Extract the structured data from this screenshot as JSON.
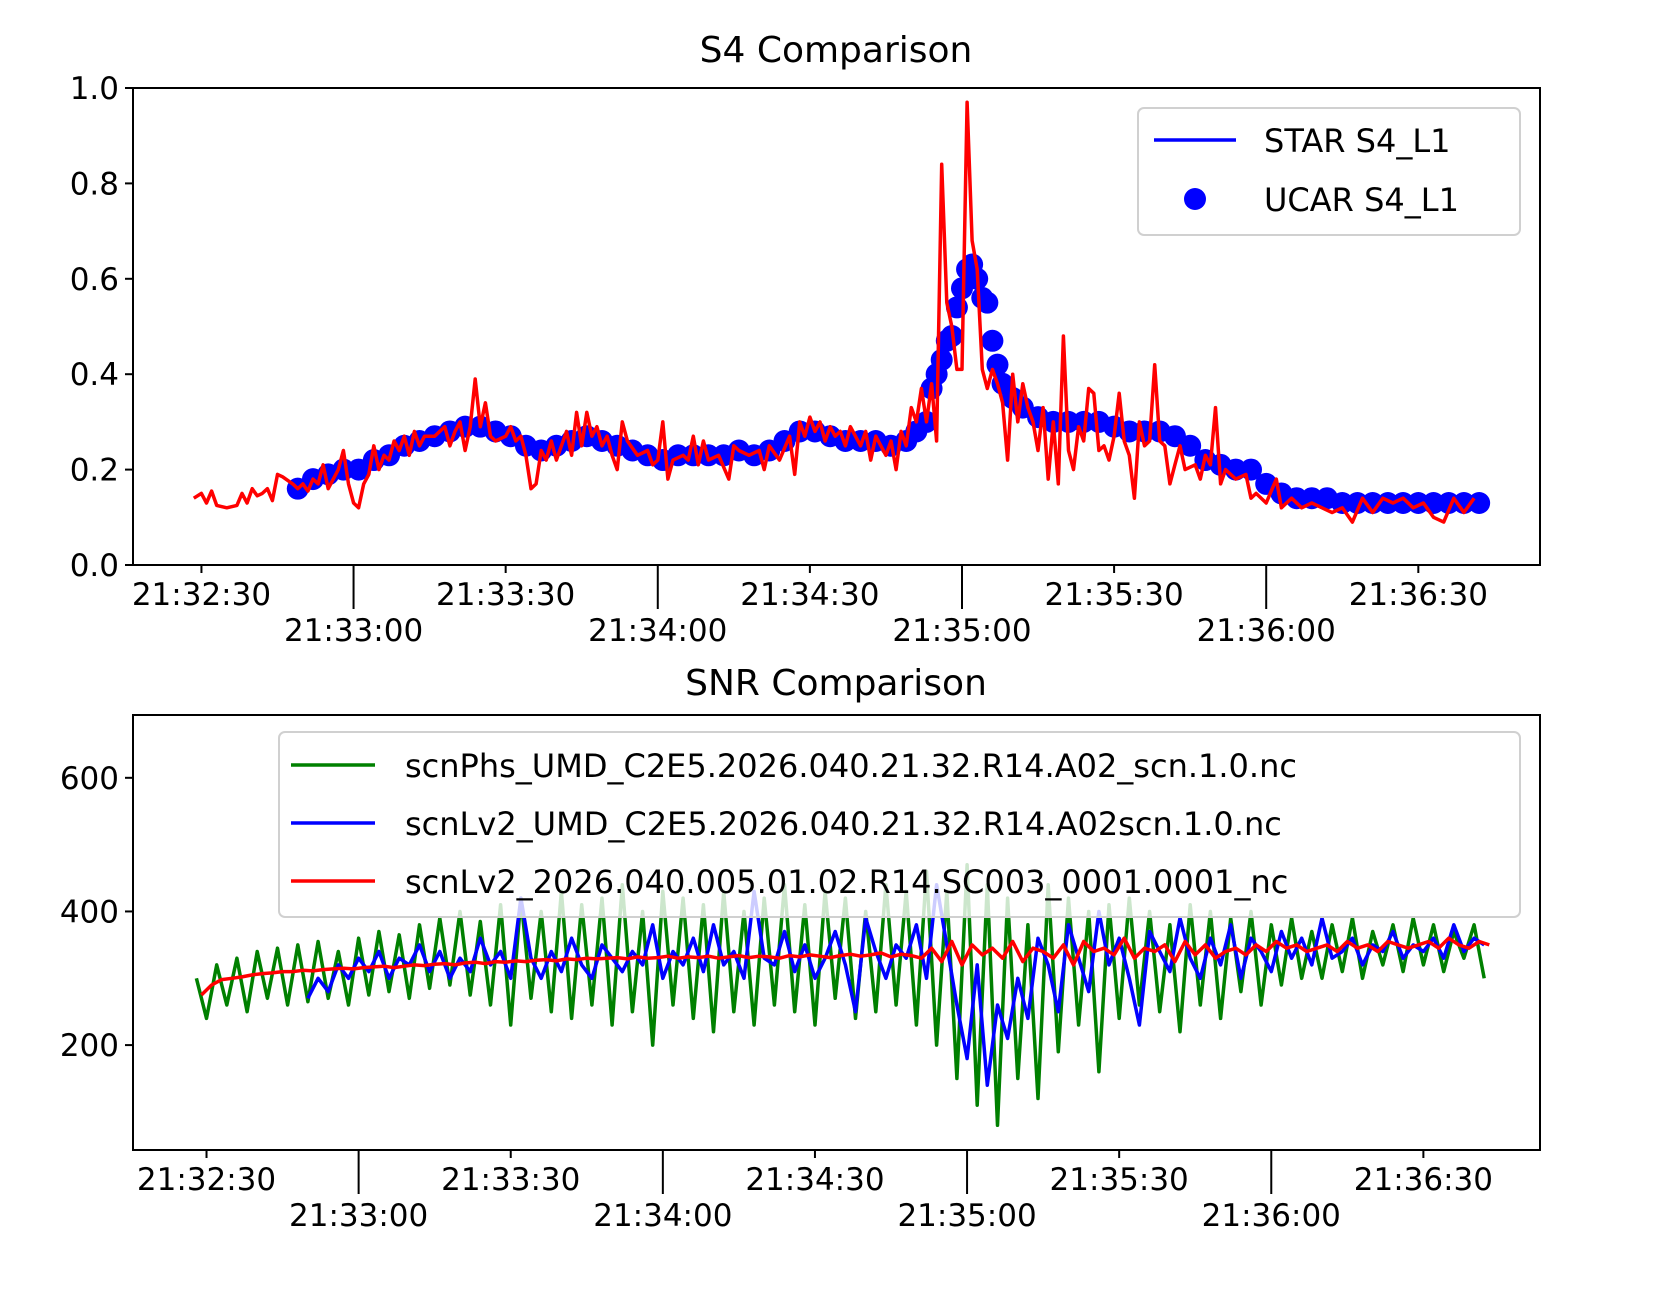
{
  "chart_data": [
    {
      "type": "line",
      "title": "S4 Comparison",
      "xlabel": "",
      "ylabel": "",
      "x_units": "seconds after 21:32:30",
      "xlim": [
        -13.5,
        264
      ],
      "ylim": [
        0,
        1.0
      ],
      "yticks": [
        "0.0",
        "0.2",
        "0.4",
        "0.6",
        "0.8",
        "1.0"
      ],
      "ytick_values": [
        0,
        0.2,
        0.4,
        0.6,
        0.8,
        1.0
      ],
      "xticks": [
        "21:32:30",
        "21:33:00",
        "21:33:30",
        "21:34:00",
        "21:34:30",
        "21:35:00",
        "21:35:30",
        "21:36:00",
        "21:36:30"
      ],
      "xtick_values": [
        0,
        30,
        60,
        90,
        120,
        150,
        180,
        210,
        240
      ],
      "legend_position": "top-right",
      "legend": [
        "STAR S4_L1",
        "UCAR S4_L1"
      ],
      "series": [
        {
          "name": "UCAR S4_L1",
          "style": "markers",
          "color": "#0000ff",
          "t": [
            19,
            22,
            25,
            28,
            31,
            34,
            37,
            40,
            43,
            46,
            49,
            52,
            55,
            58,
            61,
            64,
            67,
            70,
            73,
            76,
            79,
            82,
            85,
            88,
            91,
            94,
            97,
            100,
            103,
            106,
            109,
            112,
            115,
            118,
            121,
            124,
            127,
            130,
            133,
            136,
            139,
            141,
            143,
            144,
            145,
            146,
            147,
            148,
            149,
            150,
            151,
            152,
            153,
            154,
            155,
            156,
            157,
            158,
            160,
            162,
            165,
            168,
            171,
            174,
            177,
            180,
            183,
            186,
            189,
            192,
            195,
            198,
            201,
            204,
            207,
            210,
            213,
            216,
            219,
            222,
            225,
            228,
            231,
            234,
            237,
            240,
            243,
            246,
            249,
            252
          ],
          "values": [
            0.16,
            0.18,
            0.19,
            0.2,
            0.2,
            0.22,
            0.23,
            0.25,
            0.26,
            0.27,
            0.28,
            0.29,
            0.29,
            0.28,
            0.27,
            0.25,
            0.24,
            0.25,
            0.26,
            0.27,
            0.26,
            0.25,
            0.24,
            0.23,
            0.22,
            0.23,
            0.23,
            0.23,
            0.23,
            0.24,
            0.23,
            0.24,
            0.26,
            0.28,
            0.28,
            0.27,
            0.26,
            0.26,
            0.26,
            0.25,
            0.26,
            0.28,
            0.3,
            0.37,
            0.4,
            0.43,
            0.47,
            0.48,
            0.54,
            0.58,
            0.62,
            0.63,
            0.6,
            0.56,
            0.55,
            0.47,
            0.42,
            0.38,
            0.35,
            0.33,
            0.31,
            0.3,
            0.3,
            0.3,
            0.3,
            0.29,
            0.28,
            0.28,
            0.28,
            0.27,
            0.25,
            0.22,
            0.21,
            0.2,
            0.2,
            0.17,
            0.15,
            0.14,
            0.14,
            0.14,
            0.13,
            0.13,
            0.13,
            0.13,
            0.13,
            0.13,
            0.13,
            0.13,
            0.13,
            0.13
          ]
        },
        {
          "name": "STAR S4_L1",
          "style": "line",
          "color": "#ff0000",
          "t": [
            -1.5,
            0,
            1,
            2,
            3,
            5,
            7,
            8,
            9,
            10,
            11,
            12,
            13,
            14,
            15,
            16,
            18,
            19,
            20,
            21,
            22,
            23,
            24,
            25,
            26,
            27,
            28,
            29,
            30,
            31,
            32,
            33,
            34,
            35,
            36,
            37,
            38,
            39,
            40,
            41,
            42,
            43,
            44,
            46,
            48,
            49,
            50,
            51,
            52,
            53,
            54,
            55,
            56,
            57,
            58,
            60,
            61,
            62,
            63,
            64,
            65,
            66,
            67,
            68,
            69,
            70,
            72,
            73,
            74,
            75,
            76,
            77,
            78,
            79,
            80,
            81,
            82,
            83,
            84,
            86,
            88,
            89,
            90,
            91,
            92,
            93,
            95,
            96,
            97,
            98,
            99,
            100,
            102,
            104,
            105,
            106,
            108,
            110,
            111,
            112,
            114,
            116,
            117,
            118,
            119,
            120,
            121,
            122,
            123,
            124,
            125,
            126,
            127,
            128,
            130,
            131,
            132,
            133,
            134,
            135,
            136,
            137,
            138,
            139,
            140,
            141,
            142,
            143,
            144,
            145,
            146,
            147,
            148,
            149,
            150,
            151,
            152,
            153,
            154,
            155,
            156,
            157,
            158,
            159,
            160,
            161,
            162,
            163,
            164,
            165,
            166,
            167,
            168,
            169,
            170,
            171,
            172,
            173,
            174,
            175,
            176,
            177,
            178,
            179,
            180,
            181,
            182,
            183,
            184,
            185,
            186,
            187,
            188,
            189,
            190,
            191,
            192,
            193,
            194,
            196,
            197,
            198,
            199,
            200,
            201,
            202,
            204,
            206,
            207,
            208,
            210,
            212,
            213,
            215,
            217,
            219,
            221,
            223,
            225,
            227,
            229,
            231,
            233,
            235,
            237,
            239,
            241,
            243,
            245,
            247,
            249,
            251
          ],
          "values": [
            0.14,
            0.15,
            0.13,
            0.155,
            0.125,
            0.12,
            0.125,
            0.15,
            0.13,
            0.16,
            0.145,
            0.15,
            0.16,
            0.135,
            0.19,
            0.185,
            0.17,
            0.16,
            0.17,
            0.155,
            0.18,
            0.17,
            0.21,
            0.16,
            0.18,
            0.2,
            0.24,
            0.17,
            0.13,
            0.12,
            0.17,
            0.19,
            0.25,
            0.2,
            0.23,
            0.22,
            0.26,
            0.24,
            0.27,
            0.23,
            0.28,
            0.25,
            0.27,
            0.27,
            0.29,
            0.25,
            0.28,
            0.3,
            0.24,
            0.29,
            0.39,
            0.29,
            0.34,
            0.27,
            0.26,
            0.27,
            0.29,
            0.26,
            0.27,
            0.23,
            0.16,
            0.17,
            0.24,
            0.22,
            0.26,
            0.22,
            0.28,
            0.23,
            0.32,
            0.25,
            0.32,
            0.27,
            0.29,
            0.25,
            0.27,
            0.23,
            0.2,
            0.3,
            0.26,
            0.23,
            0.24,
            0.21,
            0.22,
            0.3,
            0.18,
            0.22,
            0.23,
            0.22,
            0.27,
            0.21,
            0.26,
            0.22,
            0.23,
            0.18,
            0.25,
            0.24,
            0.23,
            0.24,
            0.2,
            0.25,
            0.22,
            0.27,
            0.19,
            0.3,
            0.27,
            0.31,
            0.28,
            0.3,
            0.26,
            0.29,
            0.27,
            0.28,
            0.25,
            0.29,
            0.25,
            0.28,
            0.22,
            0.27,
            0.25,
            0.23,
            0.26,
            0.2,
            0.28,
            0.25,
            0.33,
            0.3,
            0.37,
            0.3,
            0.38,
            0.26,
            0.84,
            0.55,
            0.5,
            0.41,
            0.41,
            0.97,
            0.68,
            0.62,
            0.41,
            0.37,
            0.41,
            0.38,
            0.34,
            0.22,
            0.4,
            0.3,
            0.38,
            0.33,
            0.3,
            0.24,
            0.33,
            0.18,
            0.3,
            0.17,
            0.48,
            0.24,
            0.2,
            0.29,
            0.26,
            0.37,
            0.36,
            0.24,
            0.25,
            0.22,
            0.27,
            0.36,
            0.26,
            0.23,
            0.14,
            0.3,
            0.25,
            0.26,
            0.42,
            0.26,
            0.25,
            0.17,
            0.21,
            0.25,
            0.2,
            0.21,
            0.18,
            0.23,
            0.21,
            0.33,
            0.17,
            0.2,
            0.18,
            0.19,
            0.14,
            0.15,
            0.13,
            0.18,
            0.12,
            0.14,
            0.12,
            0.13,
            0.12,
            0.11,
            0.12,
            0.09,
            0.14,
            0.11,
            0.14,
            0.13,
            0.14,
            0.12,
            0.13,
            0.1,
            0.09,
            0.14,
            0.11,
            0.14
          ]
        }
      ]
    },
    {
      "type": "line",
      "title": "SNR Comparison",
      "xlabel": "",
      "ylabel": "",
      "x_units": "seconds after 21:32:30",
      "xlim": [
        -14.5,
        263
      ],
      "ylim": [
        43,
        694
      ],
      "yticks": [
        "200",
        "400",
        "600"
      ],
      "ytick_values": [
        200,
        400,
        600
      ],
      "xticks": [
        "21:32:30",
        "21:33:00",
        "21:33:30",
        "21:34:00",
        "21:34:30",
        "21:35:00",
        "21:35:30",
        "21:36:00",
        "21:36:30"
      ],
      "xtick_values": [
        0,
        30,
        60,
        90,
        120,
        150,
        180,
        210,
        240
      ],
      "legend_position": "top-right",
      "legend": [
        "scnPhs_UMD_C2E5.2026.040.21.32.R14.A02_scn.1.0.nc",
        "scnLv2_UMD_C2E5.2026.040.21.32.R14.A02scn.1.0.nc",
        "scnLv2_2026.040.005.01.02.R14.SC003_0001.0001_nc"
      ],
      "series": [
        {
          "name": "scnPhs_UMD_C2E5.2026.040.21.32.R14.A02_scn.1.0.nc",
          "color": "#008000",
          "t_start": -2,
          "t_step": 2,
          "values": [
            300,
            240,
            320,
            260,
            330,
            250,
            340,
            270,
            345,
            260,
            350,
            265,
            355,
            270,
            340,
            260,
            360,
            275,
            370,
            280,
            365,
            270,
            380,
            285,
            390,
            290,
            400,
            275,
            385,
            260,
            410,
            230,
            420,
            270,
            400,
            250,
            430,
            240,
            410,
            260,
            420,
            230,
            440,
            250,
            400,
            200,
            430,
            260,
            420,
            240,
            410,
            220,
            430,
            250,
            400,
            230,
            420,
            260,
            440,
            250,
            410,
            230,
            430,
            270,
            420,
            240,
            400,
            250,
            440,
            260,
            430,
            230,
            460,
            200,
            430,
            150,
            470,
            110,
            440,
            80,
            420,
            150,
            380,
            120,
            440,
            190,
            420,
            230,
            400,
            160,
            410,
            240,
            420,
            260,
            400,
            250,
            380,
            220,
            410,
            260,
            400,
            240,
            390,
            280,
            400,
            260,
            380,
            290,
            390,
            300,
            370,
            300,
            380,
            310,
            390,
            300,
            370,
            320,
            380,
            310,
            390,
            320,
            380,
            310,
            370,
            330,
            380,
            300
          ]
        },
        {
          "name": "scnLv2_UMD_C2E5.2026.040.21.32.R14.A02scn.1.0.nc",
          "color": "#0000ff",
          "t_start": 20,
          "t_step": 2,
          "values": [
            270,
            300,
            280,
            320,
            300,
            330,
            310,
            340,
            300,
            330,
            320,
            350,
            310,
            340,
            300,
            330,
            310,
            360,
            320,
            340,
            300,
            420,
            330,
            300,
            340,
            310,
            360,
            320,
            300,
            350,
            330,
            310,
            340,
            320,
            380,
            300,
            340,
            320,
            360,
            310,
            380,
            320,
            340,
            300,
            430,
            330,
            320,
            370,
            310,
            350,
            300,
            330,
            370,
            320,
            250,
            390,
            340,
            300,
            350,
            330,
            380,
            300,
            440,
            350,
            260,
            180,
            320,
            140,
            260,
            210,
            300,
            240,
            360,
            320,
            250,
            380,
            330,
            280,
            400,
            320,
            360,
            300,
            230,
            370,
            340,
            310,
            390,
            330,
            300,
            360,
            320,
            380,
            300,
            360,
            340,
            310,
            370,
            330,
            360,
            320,
            390,
            330,
            340,
            360,
            320,
            350,
            340,
            370,
            330,
            350,
            340,
            360,
            330,
            380,
            340,
            360,
            350
          ]
        },
        {
          "name": "scnLv2_2026.040.005.01.02.R14.SC003_0001.0001_nc",
          "color": "#ff0000",
          "t_start": -1,
          "t_step": 2,
          "values": [
            275,
            290,
            298,
            300,
            302,
            305,
            307,
            308,
            310,
            310,
            312,
            311,
            313,
            314,
            315,
            314,
            316,
            317,
            318,
            316,
            318,
            320,
            319,
            321,
            322,
            320,
            323,
            324,
            322,
            325,
            324,
            326,
            325,
            327,
            328,
            326,
            329,
            328,
            330,
            329,
            330,
            331,
            329,
            332,
            330,
            331,
            333,
            330,
            332,
            331,
            333,
            330,
            332,
            334,
            331,
            333,
            332,
            330,
            334,
            332,
            335,
            333,
            331,
            334,
            336,
            333,
            335,
            338,
            332,
            336,
            334,
            330,
            345,
            325,
            355,
            320,
            350,
            335,
            345,
            330,
            355,
            325,
            345,
            340,
            330,
            350,
            320,
            355,
            340,
            345,
            335,
            360,
            330,
            345,
            340,
            350,
            325,
            355,
            335,
            350,
            330,
            340,
            345,
            335,
            350,
            340,
            355,
            345,
            350,
            340,
            345,
            350,
            340,
            355,
            345,
            350,
            340,
            355,
            350,
            345,
            350,
            355,
            345,
            360,
            350,
            345,
            355,
            350
          ]
        }
      ]
    }
  ]
}
